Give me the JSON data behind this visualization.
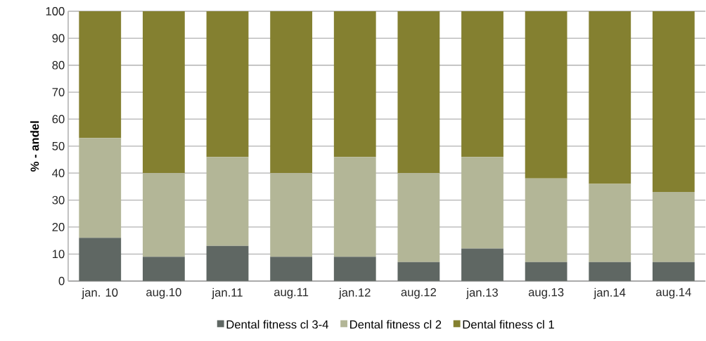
{
  "chart_data": {
    "type": "bar",
    "stacked": true,
    "ylabel": "% - andel",
    "categories": [
      "jan. 10",
      "aug.10",
      "jan.11",
      "aug.11",
      "jan.12",
      "aug.12",
      "jan.13",
      "aug.13",
      "jan.14",
      "aug.14"
    ],
    "series": [
      {
        "name": "Dental fitness cl 3-4",
        "color": "#5f6763",
        "values": [
          16,
          9,
          13,
          9,
          9,
          7,
          12,
          7,
          7,
          7
        ]
      },
      {
        "name": "Dental fitness cl 2",
        "color": "#b3b697",
        "values": [
          37,
          31,
          33,
          31,
          37,
          33,
          34,
          31,
          29,
          26
        ]
      },
      {
        "name": "Dental fitness cl 1",
        "color": "#848030",
        "values": [
          47,
          60,
          54,
          60,
          54,
          60,
          54,
          62,
          64,
          67
        ]
      }
    ],
    "ylim": [
      0,
      100
    ],
    "yticks": [
      0,
      10,
      20,
      30,
      40,
      50,
      60,
      70,
      80,
      90,
      100
    ],
    "grid": "y",
    "legend": "bottom"
  }
}
